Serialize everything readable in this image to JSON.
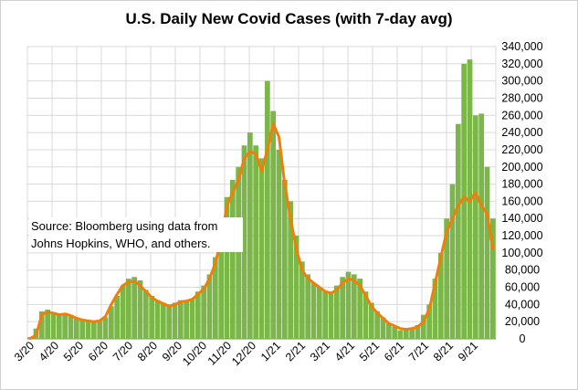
{
  "chart_data": {
    "type": "bar",
    "title": "U.S. Daily New Covid Cases (with 7-day avg)",
    "annotation": "Source:  Bloomberg using data from Johns Hopkins, WHO, and others.",
    "x_tick_labels": [
      "3/20",
      "4/20",
      "5/20",
      "6/20",
      "7/20",
      "8/20",
      "9/20",
      "10/20",
      "11/20",
      "12/20",
      "1/21",
      "2/21",
      "3/21",
      "4/21",
      "5/21",
      "6/21",
      "7/21",
      "8/21",
      "9/21"
    ],
    "y_tick_labels": [
      "0",
      "20,000",
      "40,000",
      "60,000",
      "80,000",
      "100,000",
      "120,000",
      "140,000",
      "160,000",
      "180,000",
      "200,000",
      "220,000",
      "240,000",
      "260,000",
      "280,000",
      "300,000",
      "320,000",
      "340,000"
    ],
    "ylim": [
      0,
      340000
    ],
    "y_axis_position": "right",
    "grid": true,
    "colors": {
      "bars": "#7ab648",
      "avg_line": "#f07f09",
      "grid": "#d9d9d9"
    },
    "series": [
      {
        "type": "bar",
        "x": [
          "3/20",
          "3/27",
          "4/3",
          "4/10",
          "4/17",
          "4/24",
          "5/1",
          "5/8",
          "5/15",
          "5/22",
          "5/29",
          "6/5",
          "6/12",
          "6/19",
          "6/26",
          "7/3",
          "7/10",
          "7/17",
          "7/24",
          "7/31",
          "8/7",
          "8/14",
          "8/21",
          "8/28",
          "9/4",
          "9/11",
          "9/18",
          "9/25",
          "10/2",
          "10/9",
          "10/16",
          "10/23",
          "10/30",
          "11/6",
          "11/13",
          "11/20",
          "11/27",
          "12/4",
          "12/11",
          "12/18",
          "12/25",
          "1/1",
          "1/8",
          "1/15",
          "1/22",
          "1/29",
          "2/5",
          "2/12",
          "2/19",
          "2/26",
          "3/5",
          "3/12",
          "3/19",
          "3/26",
          "4/2",
          "4/9",
          "4/16",
          "4/23",
          "4/30",
          "5/7",
          "5/14",
          "5/21",
          "5/28",
          "6/4",
          "6/11",
          "6/18",
          "6/25",
          "7/2",
          "7/9",
          "7/16",
          "7/23",
          "7/30",
          "8/6",
          "8/13",
          "8/20",
          "8/27",
          "9/3",
          "9/10",
          "9/17",
          "9/24",
          "9/30"
        ],
        "values": [
          2000,
          12000,
          32000,
          34000,
          31000,
          29000,
          30000,
          28000,
          25000,
          22000,
          21000,
          20000,
          21000,
          25000,
          38000,
          50000,
          62000,
          70000,
          72000,
          68000,
          57000,
          50000,
          45000,
          42000,
          40000,
          42000,
          45000,
          45000,
          47000,
          55000,
          62000,
          75000,
          95000,
          125000,
          165000,
          185000,
          200000,
          225000,
          240000,
          225000,
          210000,
          300000,
          265000,
          220000,
          185000,
          160000,
          120000,
          90000,
          75000,
          65000,
          60000,
          55000,
          55000,
          62000,
          72000,
          78000,
          75000,
          70000,
          55000,
          42000,
          32000,
          25000,
          18000,
          14000,
          10000,
          10000,
          12000,
          16000,
          28000,
          40000,
          70000,
          100000,
          140000,
          180000,
          250000,
          320000,
          325000,
          260000,
          262000,
          200000,
          140000
        ]
      },
      {
        "name": "7-day avg",
        "type": "line",
        "x": [
          "3/20",
          "3/27",
          "4/3",
          "4/10",
          "4/17",
          "4/24",
          "5/1",
          "5/8",
          "5/15",
          "5/22",
          "5/29",
          "6/5",
          "6/12",
          "6/19",
          "6/26",
          "7/3",
          "7/10",
          "7/17",
          "7/24",
          "7/31",
          "8/7",
          "8/14",
          "8/21",
          "8/28",
          "9/4",
          "9/11",
          "9/18",
          "9/25",
          "10/2",
          "10/9",
          "10/16",
          "10/23",
          "10/30",
          "11/6",
          "11/13",
          "11/20",
          "11/27",
          "12/4",
          "12/11",
          "12/18",
          "12/25",
          "1/1",
          "1/8",
          "1/15",
          "1/22",
          "1/29",
          "2/5",
          "2/12",
          "2/19",
          "2/26",
          "3/5",
          "3/12",
          "3/19",
          "3/26",
          "4/2",
          "4/9",
          "4/16",
          "4/23",
          "4/30",
          "5/7",
          "5/14",
          "5/21",
          "5/28",
          "6/4",
          "6/11",
          "6/18",
          "6/25",
          "7/2",
          "7/9",
          "7/16",
          "7/23",
          "7/30",
          "8/6",
          "8/13",
          "8/20",
          "8/27",
          "9/3",
          "9/10",
          "9/17",
          "9/24",
          "9/30"
        ],
        "values": [
          500,
          4000,
          28000,
          31000,
          30000,
          28000,
          29000,
          27000,
          24000,
          22000,
          21000,
          20000,
          21000,
          26000,
          40000,
          52000,
          62000,
          66000,
          67000,
          62000,
          55000,
          48000,
          44000,
          41000,
          38000,
          40000,
          43000,
          44000,
          46000,
          52000,
          58000,
          70000,
          88000,
          115000,
          155000,
          170000,
          185000,
          210000,
          218000,
          215000,
          195000,
          220000,
          250000,
          235000,
          180000,
          140000,
          105000,
          80000,
          70000,
          65000,
          60000,
          55000,
          53000,
          57000,
          65000,
          70000,
          68000,
          62000,
          50000,
          38000,
          30000,
          24000,
          18000,
          15000,
          12000,
          11000,
          12000,
          14000,
          20000,
          35000,
          65000,
          95000,
          125000,
          140000,
          155000,
          165000,
          160000,
          170000,
          155000,
          145000,
          105000
        ]
      }
    ]
  }
}
